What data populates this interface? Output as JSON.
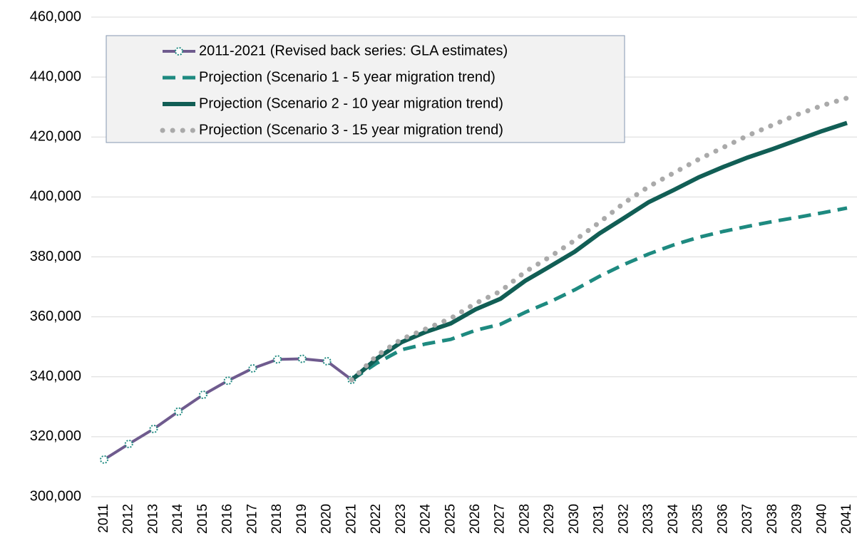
{
  "chart_data": {
    "type": "line",
    "categories": [
      "2011",
      "2012",
      "2013",
      "2014",
      "2015",
      "2016",
      "2017",
      "2018",
      "2019",
      "2020",
      "2021",
      "2022",
      "2023",
      "2024",
      "2025",
      "2026",
      "2027",
      "2028",
      "2029",
      "2030",
      "2031",
      "2032",
      "2033",
      "2034",
      "2035",
      "2036",
      "2037",
      "2038",
      "2039",
      "2040",
      "2041"
    ],
    "series": [
      {
        "name": "2011-2021 (Revised back series: GLA estimates)",
        "color": "#6f5b8e",
        "style": "solid-marker",
        "values": [
          312400,
          317600,
          322600,
          328400,
          334000,
          338700,
          342800,
          345800,
          346000,
          345200,
          339000,
          null,
          null,
          null,
          null,
          null,
          null,
          null,
          null,
          null,
          null,
          null,
          null,
          null,
          null,
          null,
          null,
          null,
          null,
          null,
          null
        ]
      },
      {
        "name": "Projection (Scenario 1 - 5 year migration trend)",
        "color": "#1e8a80",
        "style": "dashed",
        "values": [
          null,
          null,
          null,
          null,
          null,
          null,
          null,
          null,
          null,
          null,
          339000,
          344500,
          349000,
          351000,
          352500,
          355500,
          357500,
          361500,
          365000,
          369000,
          373500,
          377500,
          381000,
          384000,
          386500,
          388500,
          390200,
          391800,
          393200,
          394700,
          396300
        ]
      },
      {
        "name": "Projection (Scenario 2 - 10 year migration trend)",
        "color": "#115e55",
        "style": "solid",
        "values": [
          null,
          null,
          null,
          null,
          null,
          null,
          null,
          null,
          null,
          null,
          339000,
          346000,
          351500,
          355000,
          357800,
          362500,
          366000,
          372000,
          376800,
          381700,
          387800,
          393000,
          398300,
          402300,
          406500,
          410000,
          413200,
          416000,
          419000,
          422000,
          424700
        ]
      },
      {
        "name": "Projection (Scenario 3 - 15 year migration trend)",
        "color": "#aaaaaa",
        "style": "dotted",
        "values": [
          null,
          null,
          null,
          null,
          null,
          null,
          null,
          null,
          null,
          null,
          339000,
          347000,
          352500,
          356000,
          359500,
          364500,
          368500,
          375000,
          380000,
          385500,
          391500,
          398000,
          403500,
          408000,
          412500,
          416500,
          420500,
          424000,
          427500,
          430500,
          433000
        ]
      }
    ],
    "ylim": [
      300000,
      460000
    ],
    "yticks": [
      {
        "value": 300000,
        "label": "300,000"
      },
      {
        "value": 320000,
        "label": "320,000"
      },
      {
        "value": 340000,
        "label": "340,000"
      },
      {
        "value": 360000,
        "label": "360,000"
      },
      {
        "value": 380000,
        "label": "380,000"
      },
      {
        "value": 400000,
        "label": "400,000"
      },
      {
        "value": 420000,
        "label": "420,000"
      },
      {
        "value": 440000,
        "label": "440,000"
      },
      {
        "value": 460000,
        "label": "460,000"
      }
    ],
    "grid": true,
    "legend": "top-left"
  }
}
